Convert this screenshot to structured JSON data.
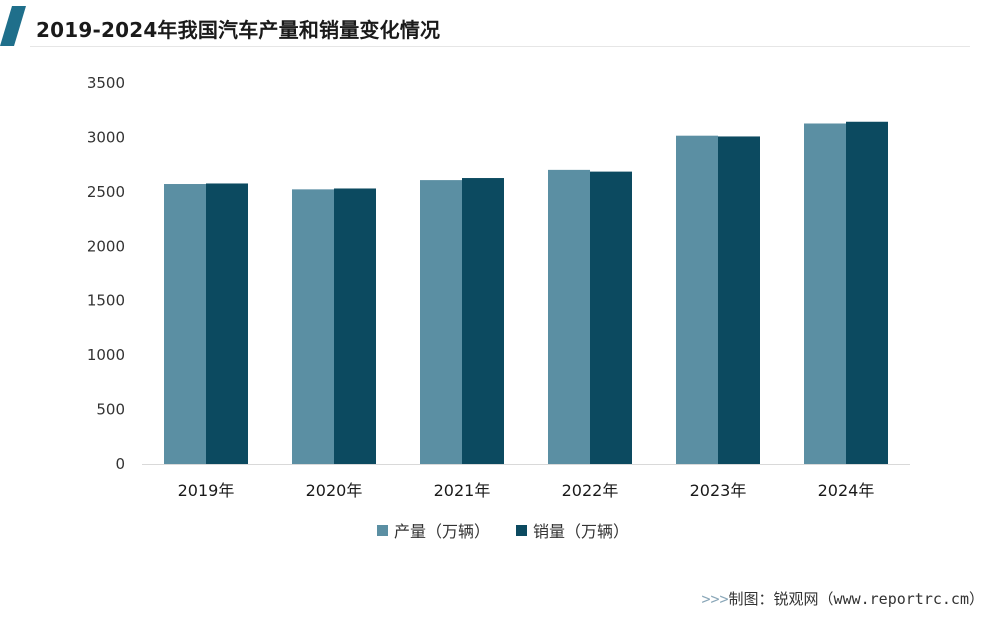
{
  "header": {
    "title": "2019-2024年我国汽车产量和销量变化情况"
  },
  "colors": {
    "accent": "#1f6f8b",
    "series_production": "#5b8fa3",
    "series_sales": "#0c4a60",
    "axis": "#d9d9d9"
  },
  "chart_data": {
    "type": "bar",
    "title": "2019-2024年我国汽车产量和销量变化情况",
    "categories": [
      "2019年",
      "2020年",
      "2021年",
      "2022年",
      "2023年",
      "2024年"
    ],
    "series": [
      {
        "name": "产量（万辆）",
        "values": [
          2572,
          2523,
          2608,
          2702,
          3016,
          3128
        ]
      },
      {
        "name": "销量（万辆）",
        "values": [
          2577,
          2531,
          2627,
          2686,
          3009,
          3144
        ]
      }
    ],
    "ylim": [
      0,
      3500
    ],
    "yticks": [
      "0",
      "500",
      "1000",
      "1500",
      "2000",
      "2500",
      "3000",
      "3500"
    ],
    "grid": false,
    "legend_position": "bottom"
  },
  "legend": {
    "items": [
      "产量（万辆）",
      "销量（万辆）"
    ]
  },
  "footer": {
    "arrows": ">>>",
    "source": "制图：锐观网（www.reportrc.cm）"
  }
}
